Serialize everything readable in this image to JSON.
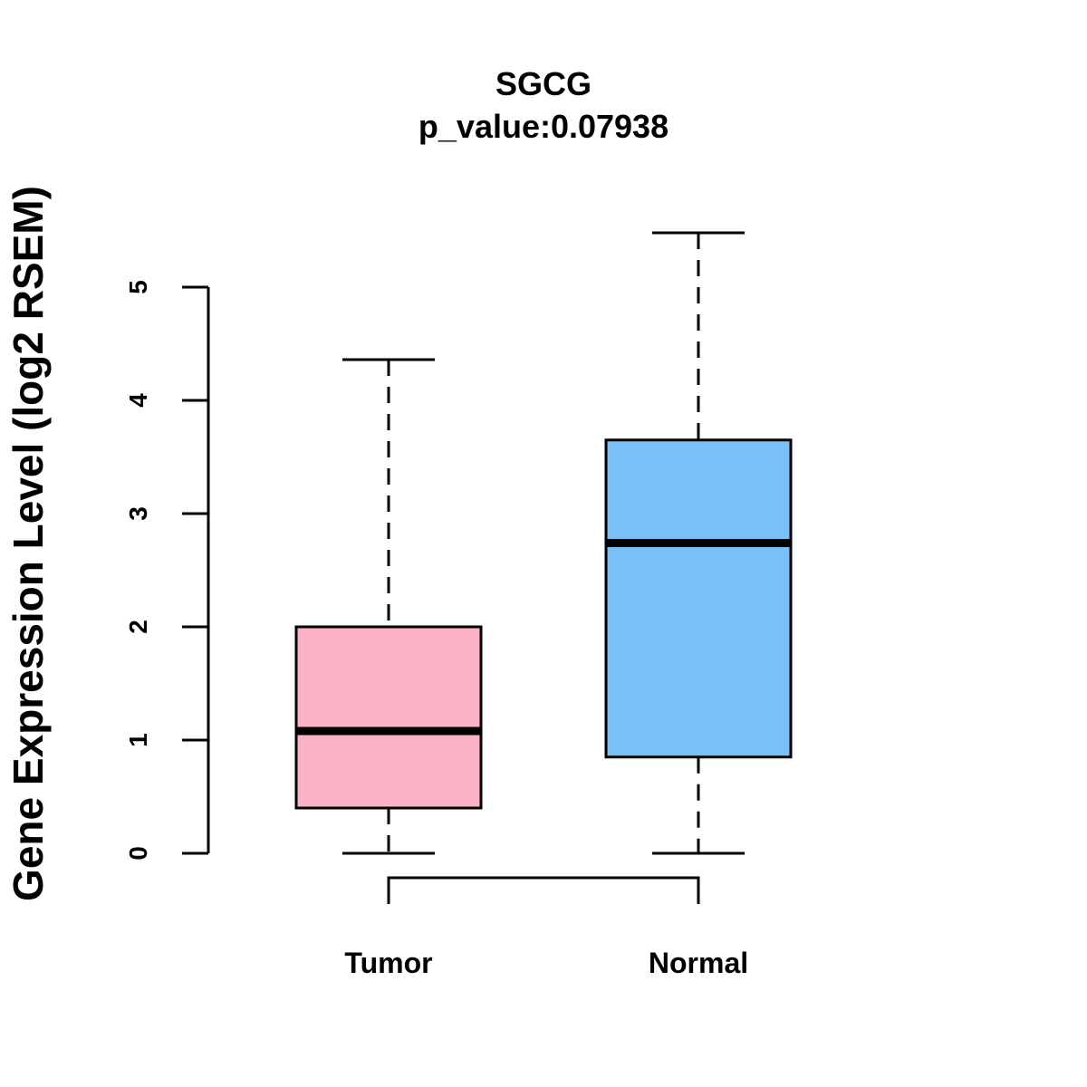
{
  "chart_data": {
    "type": "box",
    "title": "SGCG",
    "subtitle": "p_value:0.07938",
    "xlabel": "",
    "ylabel": "Gene Expression Level (log2 RSEM)",
    "ylim": [
      0,
      5
    ],
    "yticks": [
      "0",
      "1",
      "2",
      "3",
      "4",
      "5"
    ],
    "grid": false,
    "categories": [
      "Tumor",
      "Normal"
    ],
    "series": [
      {
        "name": "Tumor",
        "color": "#FBB0C3",
        "min": 0.0,
        "q1": 0.4,
        "median": 1.08,
        "q3": 2.0,
        "max": 4.36
      },
      {
        "name": "Normal",
        "color": "#77C1F7",
        "min": 0.0,
        "q1": 0.85,
        "median": 2.74,
        "q3": 3.65,
        "max": 5.48
      }
    ]
  }
}
